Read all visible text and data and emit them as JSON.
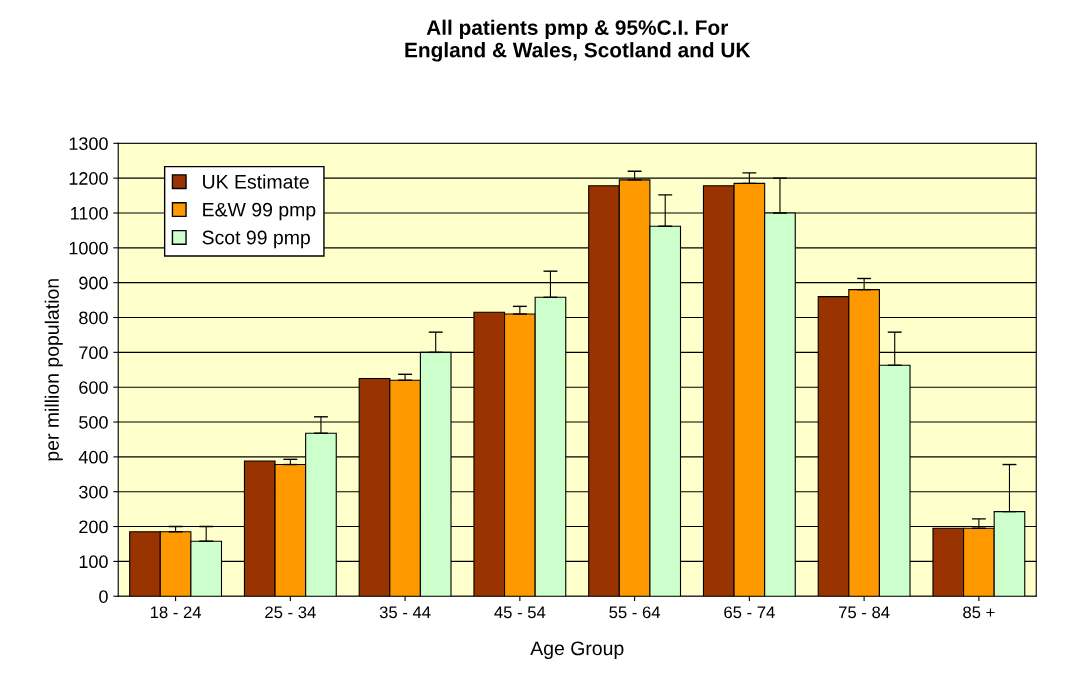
{
  "chart_data": {
    "type": "bar",
    "title": "All patients pmp & 95%C.I. For\nEngland & Wales, Scotland and UK",
    "xlabel": "Age Group",
    "ylabel": "per million population",
    "categories": [
      "18 - 24",
      "25 - 34",
      "35 - 44",
      "45 - 54",
      "55 - 64",
      "65 - 74",
      "75 - 84",
      "85 +"
    ],
    "series": [
      {
        "name": "UK Estimate",
        "color": "#993300",
        "values": [
          185,
          388,
          625,
          815,
          1178,
          1178,
          860,
          195
        ]
      },
      {
        "name": "E&W 99 pmp",
        "color": "#ff9900",
        "values": [
          185,
          378,
          620,
          810,
          1195,
          1185,
          880,
          195
        ],
        "errors": [
          [
            185,
            200
          ],
          [
            378,
            393
          ],
          [
            620,
            637
          ],
          [
            810,
            832
          ],
          [
            1195,
            1220
          ],
          [
            1185,
            1215
          ],
          [
            880,
            912
          ],
          [
            195,
            222
          ]
        ]
      },
      {
        "name": "Scot 99 pmp",
        "color": "#ccffcc",
        "values": [
          158,
          468,
          700,
          858,
          1062,
          1100,
          663,
          243
        ],
        "errors": [
          [
            158,
            200
          ],
          [
            468,
            515
          ],
          [
            700,
            758
          ],
          [
            858,
            933
          ],
          [
            1062,
            1152
          ],
          [
            1100,
            1200
          ],
          [
            663,
            758
          ],
          [
            243,
            378
          ]
        ]
      }
    ],
    "ylim": [
      0,
      1300
    ],
    "yticks": [
      0,
      100,
      200,
      300,
      400,
      500,
      600,
      700,
      800,
      900,
      1000,
      1100,
      1200,
      1300
    ],
    "grid": "y",
    "legend": "top left"
  }
}
